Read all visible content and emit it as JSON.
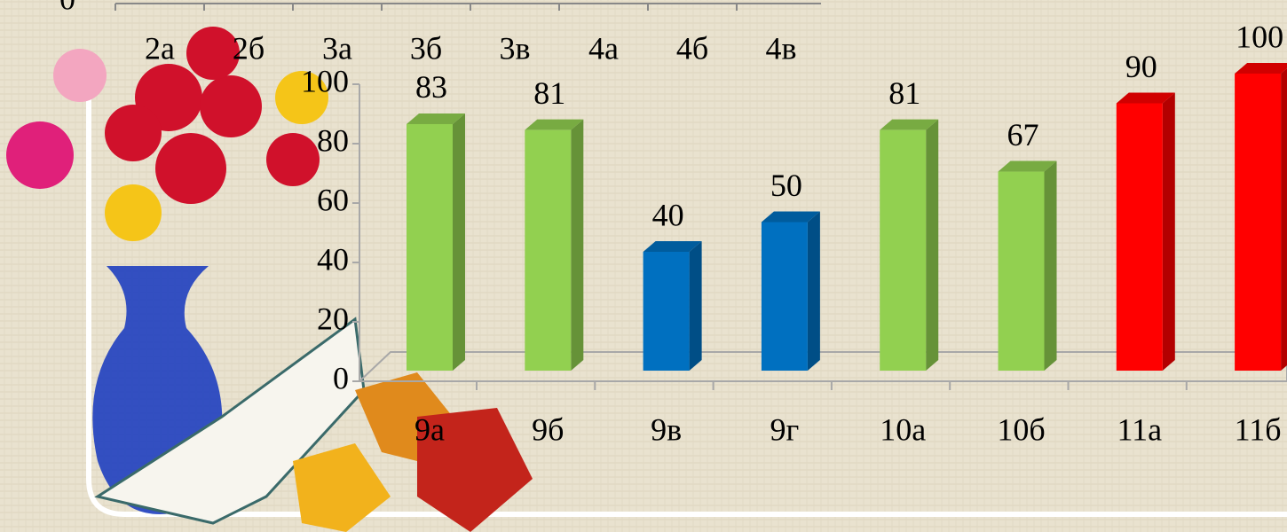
{
  "chart_data": [
    {
      "type": "bar",
      "categories": [
        "2а",
        "2б",
        "3а",
        "3б",
        "3в",
        "4а",
        "4б",
        "4в"
      ],
      "yticks": [
        0
      ]
    },
    {
      "type": "bar3d",
      "categories": [
        "9а",
        "9б",
        "9в",
        "9г",
        "10а",
        "10б",
        "11а",
        "11б"
      ],
      "values": [
        83,
        81,
        40,
        50,
        81,
        67,
        90,
        100
      ],
      "colors": [
        "#92d050",
        "#92d050",
        "#0070c0",
        "#0070c0",
        "#92d050",
        "#92d050",
        "#ff0000",
        "#ff0000"
      ],
      "ylim": [
        0,
        100
      ],
      "yticks": [
        0,
        20,
        40,
        60,
        80,
        100
      ]
    }
  ]
}
